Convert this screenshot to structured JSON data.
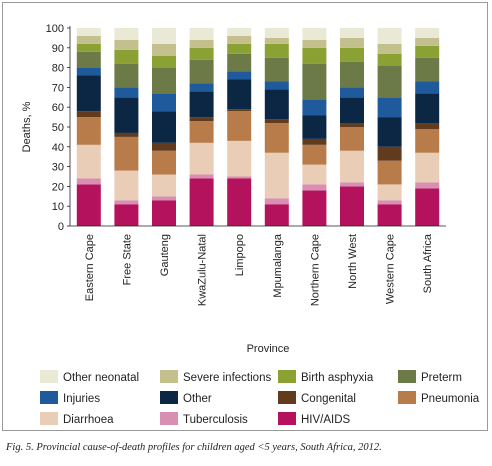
{
  "caption": "Fig. 5. Provincial cause-of-death profiles for children aged <5 years, South Africa, 2012.",
  "chart_data": {
    "type": "bar",
    "stacked": true,
    "orientation": "vertical",
    "xlabel": "Province",
    "ylabel": "Deaths, %",
    "ylim": [
      0,
      100
    ],
    "yticks": [
      0,
      10,
      20,
      30,
      40,
      50,
      60,
      70,
      80,
      90,
      100
    ],
    "grid": false,
    "legend_placement": "bottom",
    "categories": [
      "Eastern Cape",
      "Free State",
      "Gauteng",
      "KwaZulu-Natal",
      "Limpopo",
      "Mpumalanga",
      "Northern Cape",
      "North West",
      "Western Cape",
      "South Africa"
    ],
    "series": [
      {
        "name": "HIV/AIDS",
        "color": "#b5125d",
        "values": [
          21,
          11,
          13,
          24,
          24,
          11,
          18,
          20,
          11,
          19
        ]
      },
      {
        "name": "Tuberculosis",
        "color": "#d98fb2",
        "values": [
          3,
          2,
          2,
          2,
          1,
          3,
          3,
          2,
          2,
          3
        ]
      },
      {
        "name": "Diarrhoea",
        "color": "#e9cdb6",
        "values": [
          17,
          15,
          11,
          16,
          18,
          23,
          10,
          16,
          8,
          15
        ]
      },
      {
        "name": "Pneumonia",
        "color": "#b87c4a",
        "values": [
          14,
          17,
          12,
          11,
          15,
          15,
          10,
          12,
          12,
          12
        ]
      },
      {
        "name": "Congenital",
        "color": "#623a1c",
        "values": [
          3,
          2,
          4,
          2,
          1,
          2,
          3,
          2,
          7,
          3
        ]
      },
      {
        "name": "Other",
        "color": "#0c2743",
        "values": [
          18,
          18,
          16,
          13,
          15,
          15,
          12,
          13,
          15,
          15
        ]
      },
      {
        "name": "Injuries",
        "color": "#1f5a9c",
        "values": [
          4,
          5,
          9,
          4,
          4,
          4,
          8,
          5,
          10,
          6
        ]
      },
      {
        "name": "Preterm",
        "color": "#6b7a47",
        "values": [
          8,
          12,
          13,
          12,
          9,
          12,
          18,
          13,
          16,
          12
        ]
      },
      {
        "name": "Birth asphyxia",
        "color": "#8ba133",
        "values": [
          4,
          7,
          6,
          6,
          5,
          7,
          8,
          7,
          6,
          6
        ]
      },
      {
        "name": "Severe infections",
        "color": "#c3c08d",
        "values": [
          4,
          5,
          6,
          4,
          4,
          3,
          4,
          5,
          5,
          4
        ]
      },
      {
        "name": "Other neonatal",
        "color": "#eae9d6",
        "values": [
          4,
          6,
          8,
          6,
          4,
          5,
          6,
          5,
          8,
          5
        ]
      }
    ],
    "legend_order": [
      "Other neonatal",
      "Severe infections",
      "Birth asphyxia",
      "Preterm",
      "Injuries",
      "Other",
      "Congenital",
      "Pneumonia",
      "Diarrhoea",
      "Tuberculosis",
      "HIV/AIDS"
    ]
  }
}
